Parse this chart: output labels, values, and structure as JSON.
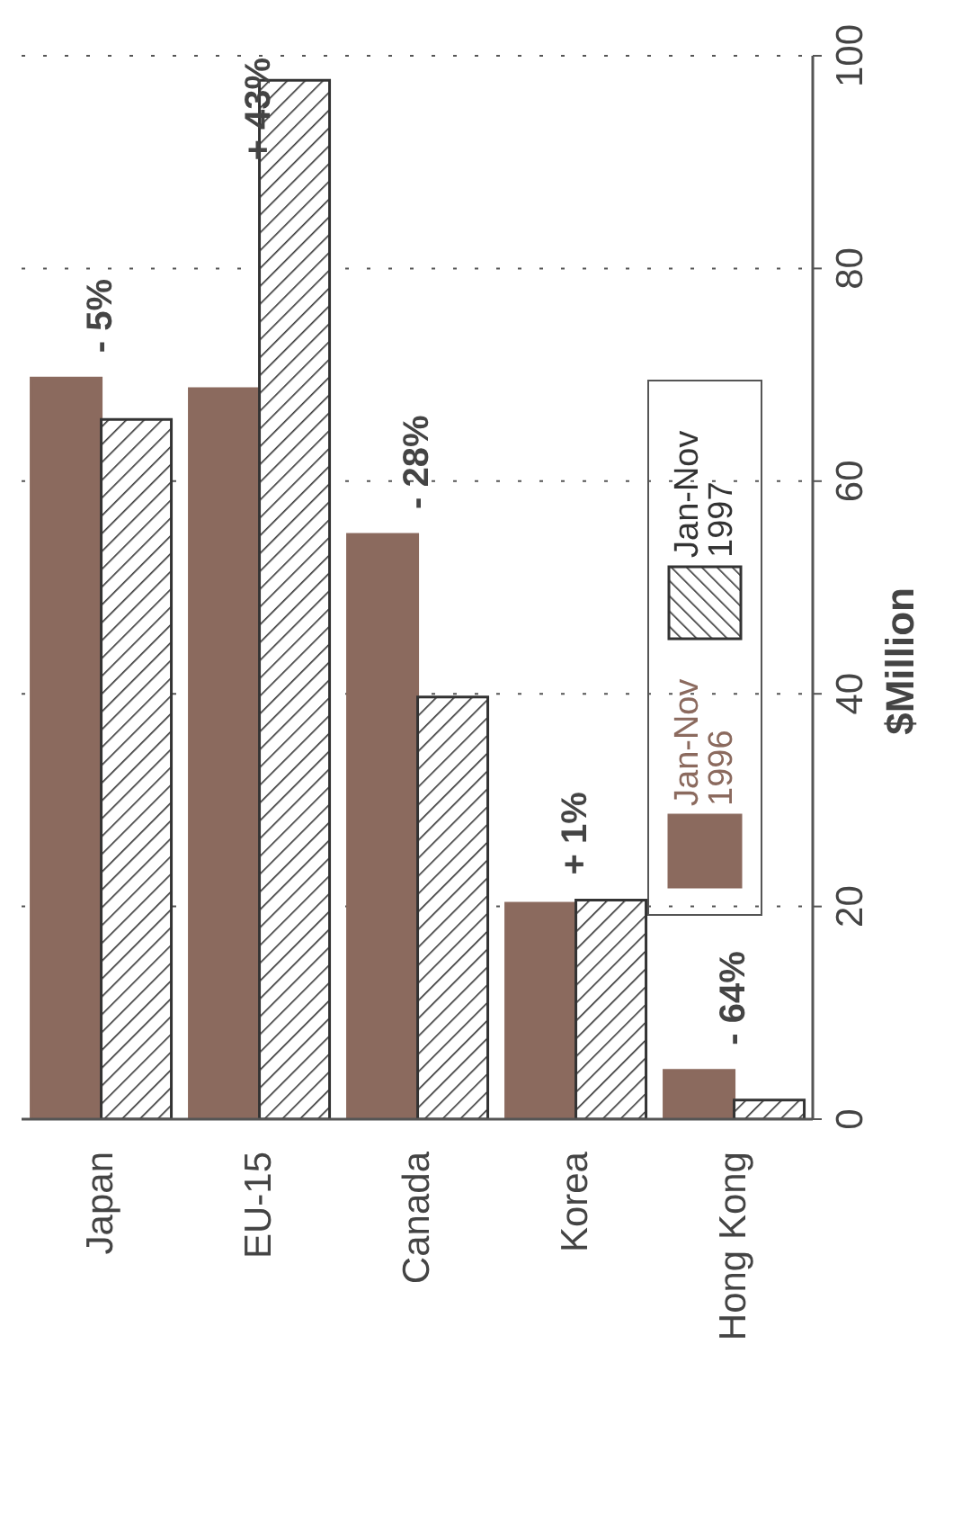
{
  "chart_data": {
    "type": "bar",
    "categories": [
      "Japan",
      "EU-15",
      "Canada",
      "Korea",
      "Hong Kong"
    ],
    "series": [
      {
        "name": "Jan-Nov 1996",
        "color": "#8b6a5e",
        "values": [
          69.7,
          68.7,
          55,
          20.3,
          4.6
        ]
      },
      {
        "name": "Jan-Nov 1997",
        "color": "#333333",
        "values": [
          65.8,
          97.7,
          39.7,
          20.6,
          1.8
        ]
      }
    ],
    "ylim": [
      0,
      100
    ],
    "yticks": [
      0,
      20,
      40,
      60,
      80,
      100
    ],
    "ylabel": "$Million",
    "grid": "y",
    "legend": "right",
    "annotations": [
      {
        "text": "- 5%",
        "x": "Japan",
        "y": 69.7
      },
      {
        "text": "+ 43%",
        "x": "EU-15",
        "y": 97.7
      },
      {
        "text": "- 28%",
        "x": "Canada",
        "y": 55
      },
      {
        "text": "+ 1%",
        "x": "Korea",
        "y": 20.6
      },
      {
        "text": "- 64%",
        "x": "Hong Kong",
        "y": 4.6
      }
    ]
  }
}
